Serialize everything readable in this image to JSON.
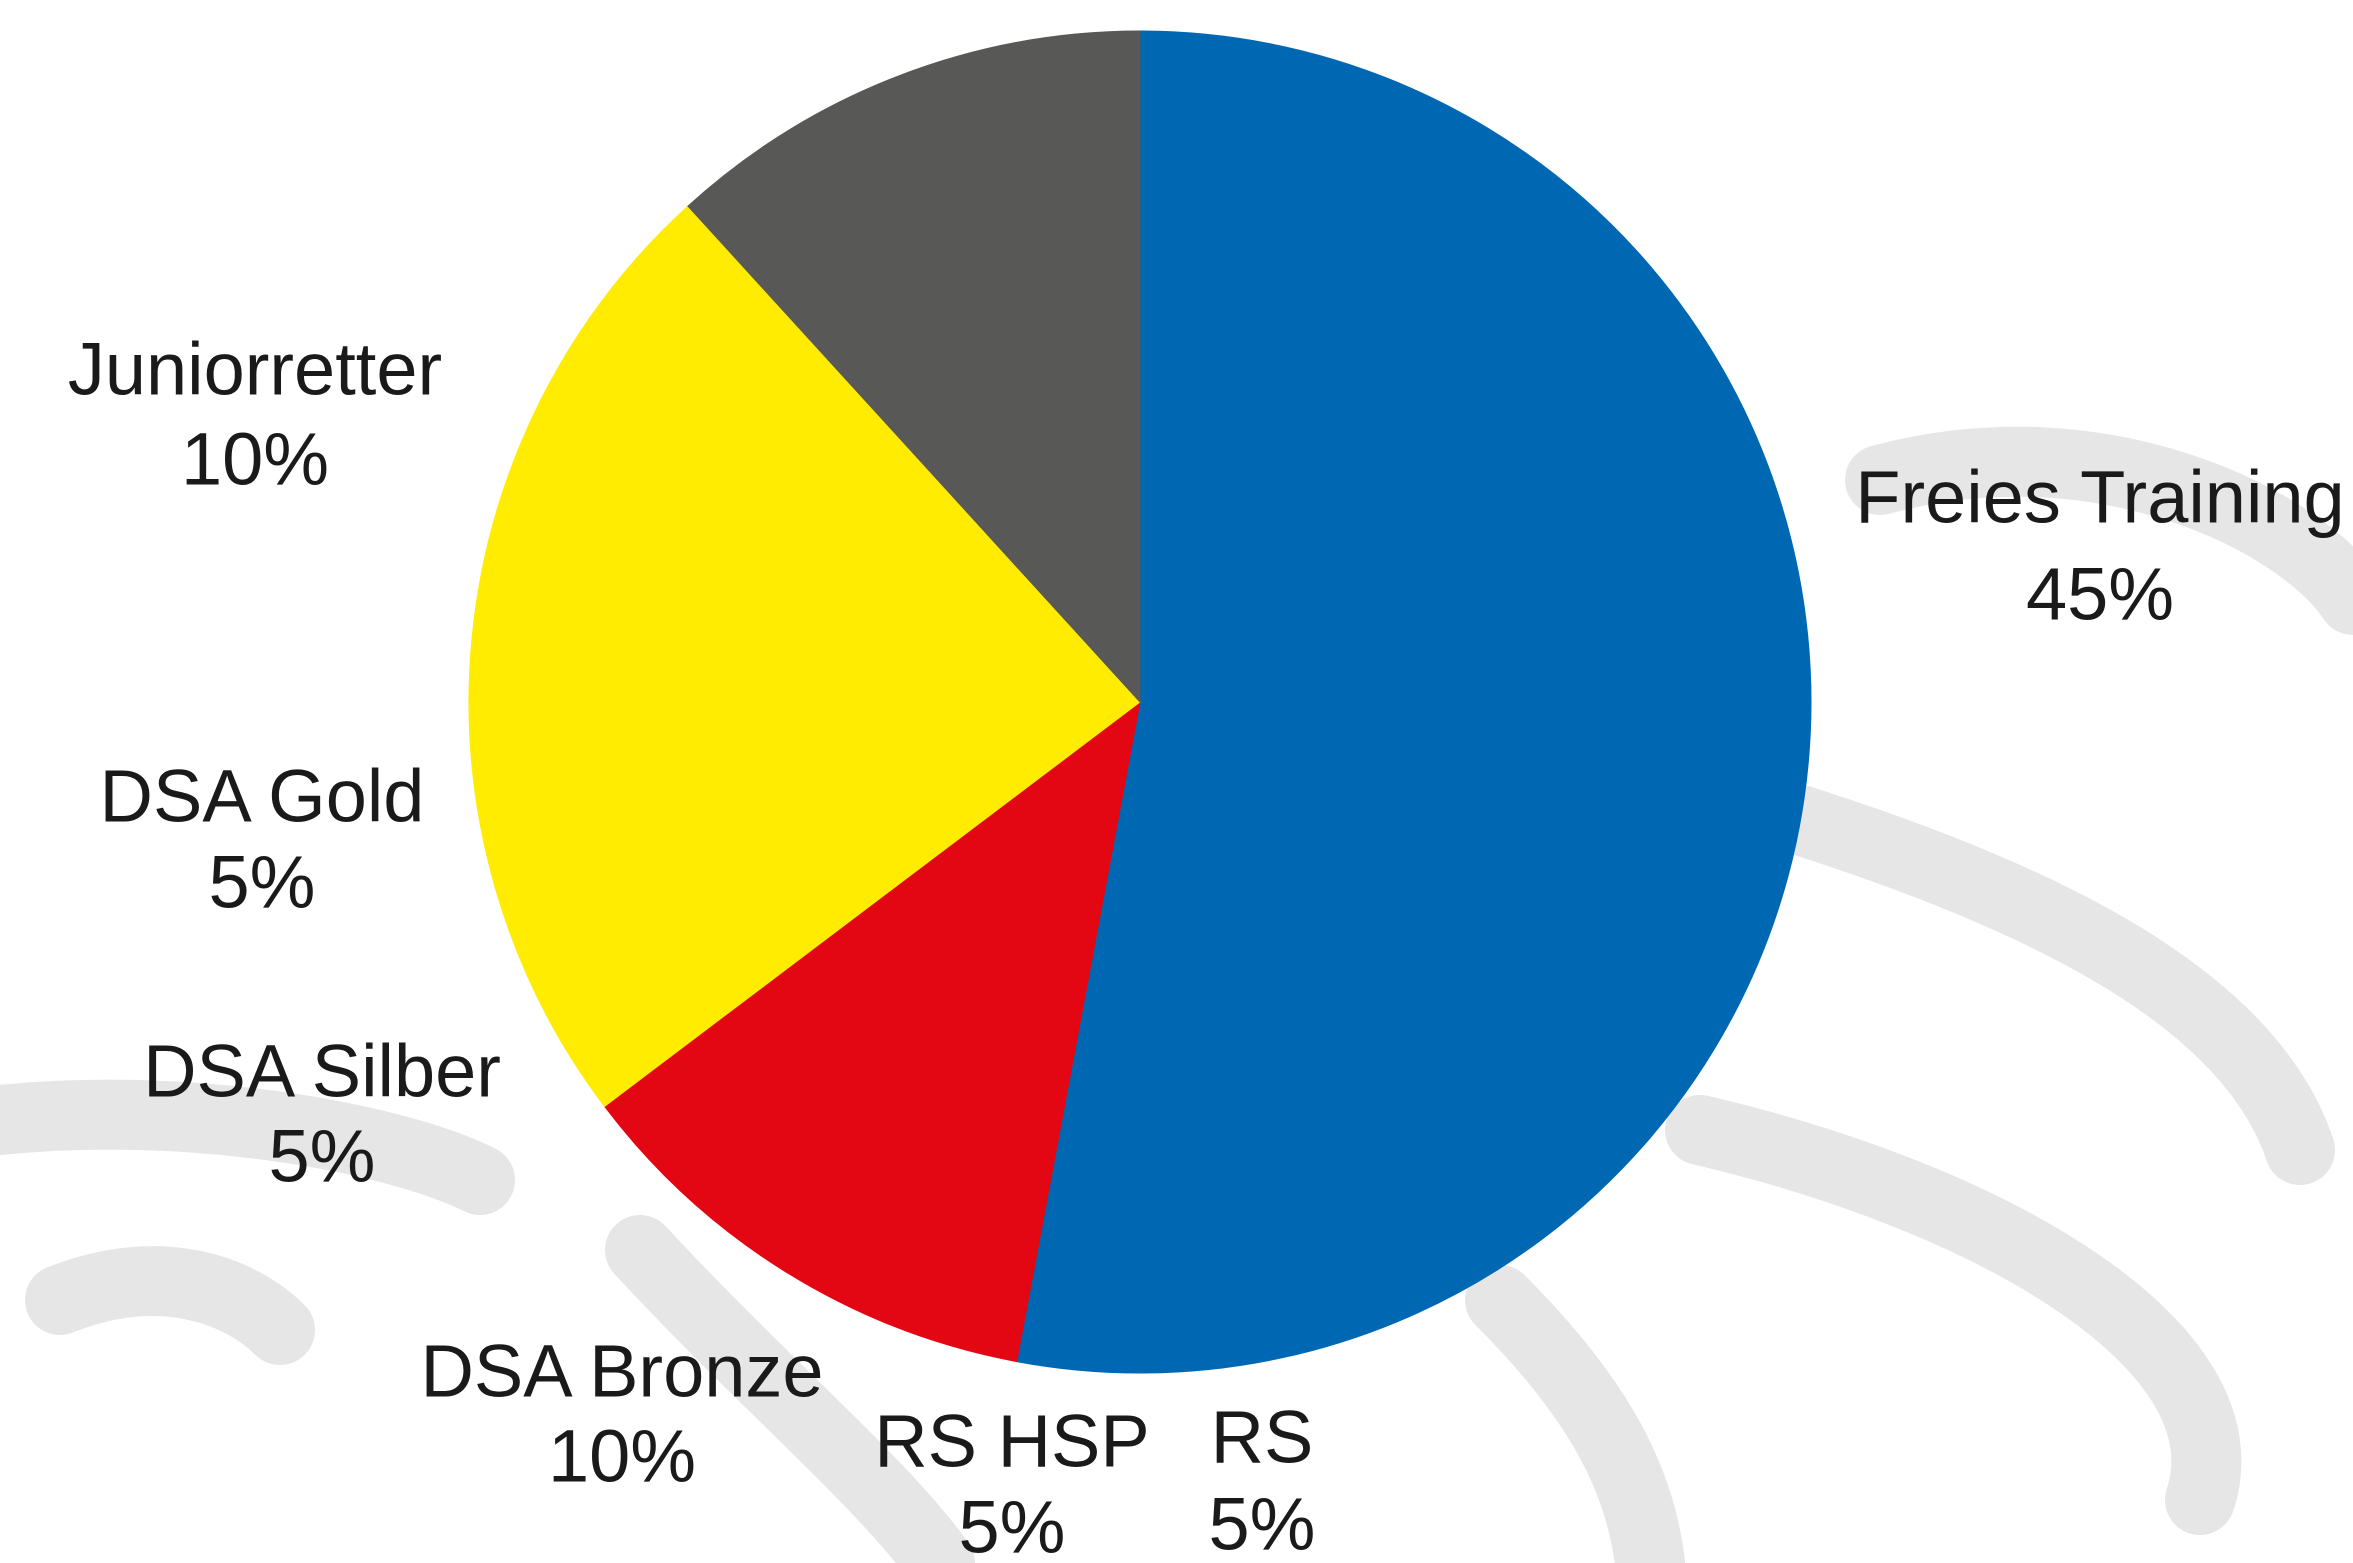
{
  "chart_data": {
    "type": "pie",
    "categories": [
      "Freies Training",
      "RS",
      "RS HSP",
      "DSA Bronze",
      "DSA Silber",
      "DSA Gold",
      "Juniorretter"
    ],
    "values": [
      45,
      5,
      5,
      10,
      5,
      5,
      10
    ],
    "value_labels": [
      "45%",
      "5%",
      "5%",
      "10%",
      "5%",
      "5%",
      "10%"
    ],
    "colors": [
      "#0068b3",
      "#e30613",
      "#e30613",
      "#ffec00",
      "#ffec00",
      "#ffec00",
      "#585857"
    ]
  }
}
